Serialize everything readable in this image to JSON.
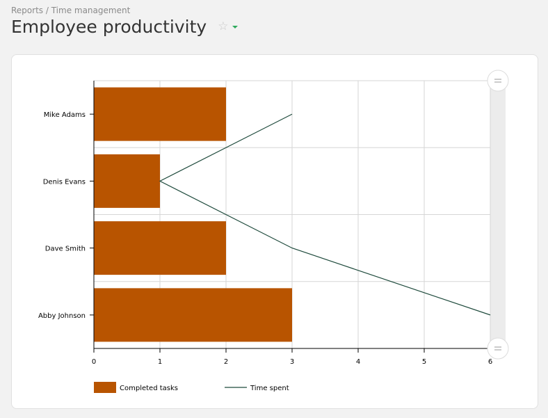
{
  "breadcrumb": "Reports / Time management",
  "page_title": "Employee productivity",
  "colors": {
    "bar": "#b85400",
    "line": "#1e4a3c",
    "accent": "#2eaa5c"
  },
  "chart_data": {
    "type": "bar",
    "orientation": "horizontal",
    "categories": [
      "Mike Adams",
      "Denis Evans",
      "Dave Smith",
      "Abby Johnson"
    ],
    "series": [
      {
        "name": "Completed tasks",
        "type": "bar",
        "values": [
          2,
          1,
          2,
          3
        ]
      },
      {
        "name": "Time spent",
        "type": "line",
        "values": [
          3,
          1,
          3,
          6
        ]
      }
    ],
    "x_ticks": [
      "0",
      "1",
      "2",
      "3",
      "4",
      "5",
      "6"
    ],
    "xlim": [
      0,
      6
    ],
    "grid": true,
    "legend_position": "bottom-left",
    "scrollbar": "vertical-right"
  }
}
